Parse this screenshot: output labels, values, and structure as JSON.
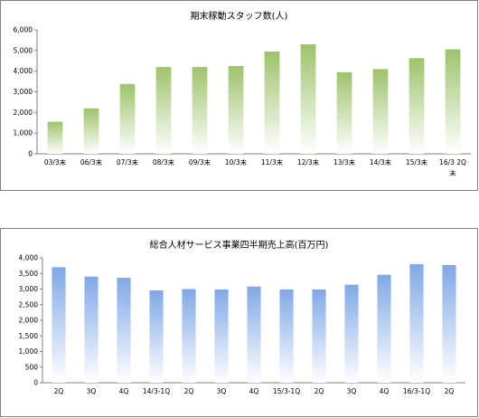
{
  "chart_data": [
    {
      "type": "bar",
      "title": "期末稼動スタッフ数(人)",
      "categories": [
        "03/3末",
        "06/3末",
        "07/3末",
        "08/3末",
        "09/3末",
        "10/3末",
        "11/3末",
        "12/3末",
        "13/3末",
        "14/3末",
        "15/3末",
        "16/3 2Q末"
      ],
      "values": [
        1550,
        2200,
        3380,
        4200,
        4200,
        4250,
        4950,
        5300,
        3950,
        4100,
        4630,
        5060
      ],
      "ylim": [
        0,
        6000
      ],
      "yticks": [
        "0",
        "1,000",
        "2,000",
        "3,000",
        "4,000",
        "5,000",
        "6,000"
      ],
      "color": "#9dc36a",
      "grid": false,
      "legend": "none"
    },
    {
      "type": "bar",
      "title": "総合人材サービス事業四半期売上高(百万円)",
      "categories": [
        "2Q",
        "3Q",
        "4Q",
        "14/3-1Q",
        "2Q",
        "3Q",
        "4Q",
        "15/3-1Q",
        "2Q",
        "3Q",
        "4Q",
        "16/3-1Q",
        "2Q"
      ],
      "values": [
        3700,
        3400,
        3360,
        2960,
        3000,
        2990,
        3080,
        2990,
        2990,
        3140,
        3460,
        3800,
        3770
      ],
      "ylim": [
        0,
        4000
      ],
      "yticks": [
        "0",
        "500",
        "1,000",
        "1,500",
        "2,000",
        "2,500",
        "3,000",
        "3,500",
        "4,000"
      ],
      "color": "#7fa8e8",
      "grid": false,
      "legend": "none"
    }
  ]
}
